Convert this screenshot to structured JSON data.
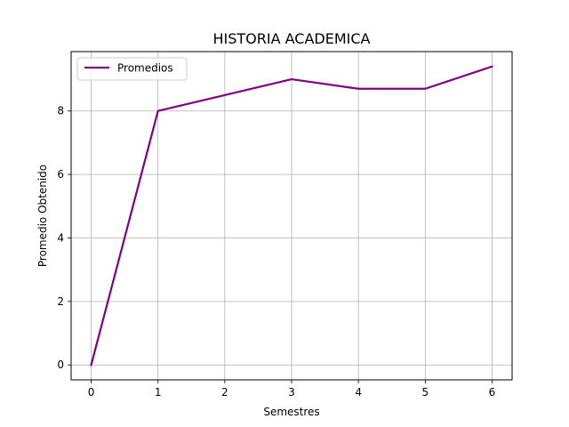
{
  "chart_data": {
    "type": "line",
    "title": "HISTORIA ACADEMICA",
    "xlabel": "Semestres",
    "ylabel": "Promedio Obtenido",
    "x": [
      0,
      1,
      2,
      3,
      4,
      5,
      6
    ],
    "series": [
      {
        "name": "Promedios",
        "values": [
          0,
          8.0,
          8.5,
          9.0,
          8.7,
          8.7,
          9.4
        ],
        "color": "#800080"
      }
    ],
    "xlim": [
      -0.3,
      6.3
    ],
    "ylim": [
      -0.47,
      9.87
    ],
    "xticks": [
      0,
      1,
      2,
      3,
      4,
      5,
      6
    ],
    "yticks": [
      0,
      2,
      4,
      6,
      8
    ],
    "grid": true,
    "legend_position": "top-left",
    "colors": {
      "grid": "#b0b0b0",
      "axis": "#000000"
    }
  }
}
